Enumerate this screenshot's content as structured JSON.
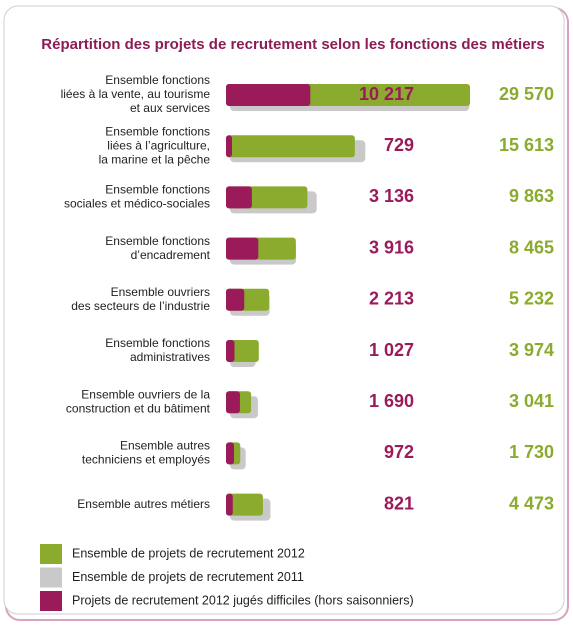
{
  "chart_data": {
    "type": "bar",
    "title": "Répartition des projets de recrutement selon les fonctions des métiers",
    "categories": [
      [
        "Ensemble fonctions",
        "liées à la vente, au tourisme",
        "et aux services"
      ],
      [
        "Ensemble fonctions",
        "liées à l’agriculture,",
        "la marine et la pêche"
      ],
      [
        "Ensemble fonctions",
        "sociales et médico-sociales"
      ],
      [
        "Ensemble fonctions",
        "d’encadrement"
      ],
      [
        "Ensemble ouvriers",
        "des secteurs de l’industrie"
      ],
      [
        "Ensemble fonctions",
        "administratives"
      ],
      [
        "Ensemble ouvriers de la",
        "construction et du bâtiment"
      ],
      [
        "Ensemble autres",
        "techniciens et employés"
      ],
      [
        "Ensemble autres métiers"
      ]
    ],
    "series": [
      {
        "name": "Ensemble de projets de recrutement 2012",
        "color": "#8aab2e",
        "values": [
          29570,
          15613,
          9863,
          8465,
          5232,
          3974,
          3041,
          1730,
          4473
        ],
        "value_labels": [
          "29 570",
          "15 613",
          "9 863",
          "8 465",
          "5 232",
          "3 974",
          "3 041",
          "1 730",
          "4 473"
        ]
      },
      {
        "name": "Ensemble de projets de recrutement 2011",
        "color": "#c9c9c9",
        "values": [
          29000,
          16400,
          10500,
          8000,
          4800,
          3100,
          3400,
          1900,
          4900
        ]
      },
      {
        "name": "Projets de recrutement 2012 jugés difficiles (hors saisonniers)",
        "color": "#9b1b5a",
        "values": [
          10217,
          729,
          3136,
          3916,
          2213,
          1027,
          1690,
          972,
          821
        ],
        "value_labels": [
          "10 217",
          "729",
          "3 136",
          "3 916",
          "2 213",
          "1 027",
          "1 690",
          "972",
          "821"
        ]
      }
    ]
  }
}
